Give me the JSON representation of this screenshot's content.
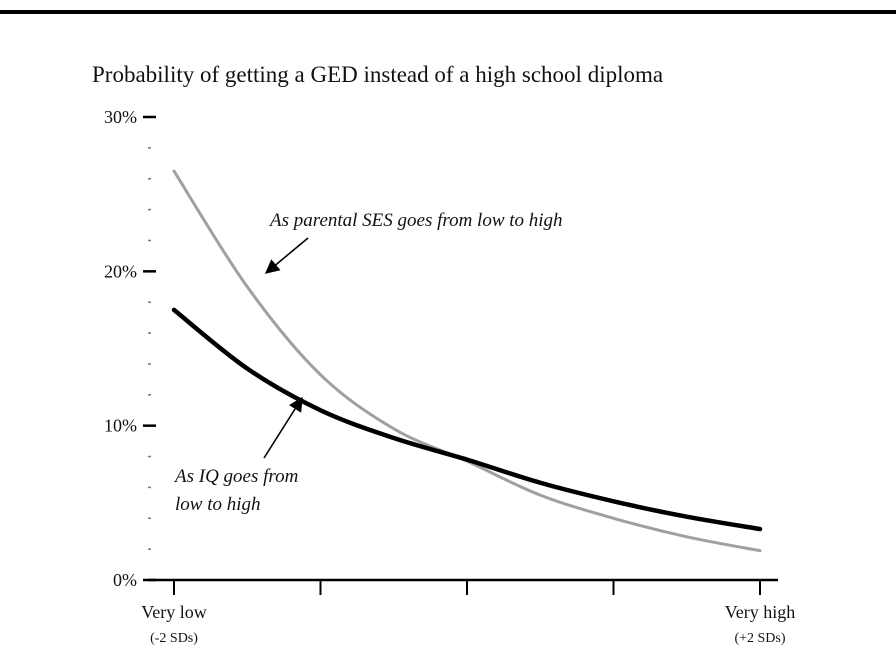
{
  "chart_data": {
    "type": "line",
    "title": "Probability of getting a GED instead of a high school diploma",
    "xlabel": "",
    "ylabel": "",
    "x": [
      -2,
      -1.5,
      -1,
      -0.5,
      0,
      0.5,
      1,
      1.5,
      2
    ],
    "x_tick_labels": [
      {
        "value": -2,
        "label": "Very low",
        "sublabel": "(-2 SDs)"
      },
      {
        "value": -1,
        "label": "",
        "sublabel": ""
      },
      {
        "value": 0,
        "label": "",
        "sublabel": ""
      },
      {
        "value": 1,
        "label": "",
        "sublabel": ""
      },
      {
        "value": 2,
        "label": "Very high",
        "sublabel": "(+2 SDs)"
      }
    ],
    "y_tick_labels": [
      {
        "value": 0,
        "label": "0%"
      },
      {
        "value": 10,
        "label": "10%"
      },
      {
        "value": 20,
        "label": "20%"
      },
      {
        "value": 30,
        "label": "30%"
      }
    ],
    "ylim": [
      0,
      30
    ],
    "xlim": [
      -2,
      2
    ],
    "series": [
      {
        "name": "As parental SES goes from low to high",
        "color": "#a0a0a0",
        "values": [
          26.5,
          19.0,
          13.3,
          9.8,
          7.7,
          5.5,
          4.0,
          2.8,
          1.9
        ]
      },
      {
        "name": "As IQ goes from low to high",
        "color": "#000000",
        "values": [
          17.5,
          13.7,
          11.0,
          9.2,
          7.8,
          6.3,
          5.1,
          4.1,
          3.3
        ]
      }
    ],
    "annotations": [
      {
        "lines": [
          "As parental SES goes from low to high"
        ],
        "series": 0
      },
      {
        "lines": [
          "As IQ goes from",
          "low to high"
        ],
        "series": 1
      }
    ],
    "grid": false
  }
}
